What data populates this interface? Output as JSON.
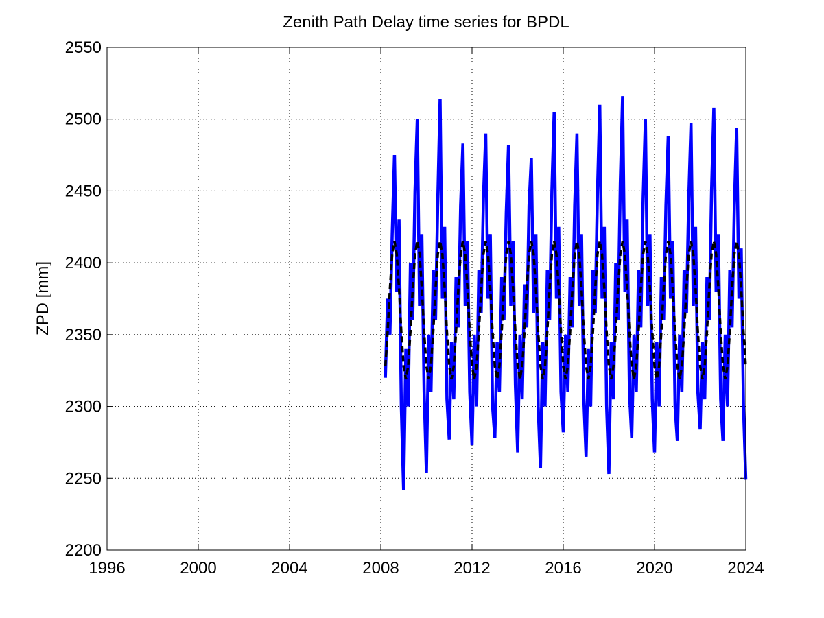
{
  "chart_data": {
    "type": "line",
    "title": "Zenith Path Delay time series for BPDL",
    "y_label": "ZPD [mm]",
    "xlim": [
      1996,
      2024
    ],
    "xticks": [
      1996,
      2000,
      2004,
      2008,
      2012,
      2016,
      2020,
      2024
    ],
    "ylim": [
      2200,
      2550
    ],
    "yticks": [
      2200,
      2250,
      2300,
      2350,
      2400,
      2450,
      2500,
      2550
    ],
    "grid": true,
    "x": [
      2008.2,
      2008.3,
      2008.4,
      2008.5,
      2008.6,
      2008.7,
      2008.8,
      2008.9,
      2009,
      2009.1,
      2009.2,
      2009.3,
      2009.4,
      2009.5,
      2009.6,
      2009.7,
      2009.8,
      2009.9,
      2010,
      2010.1,
      2010.2,
      2010.3,
      2010.4,
      2010.5,
      2010.6,
      2010.7,
      2010.8,
      2010.9,
      2011,
      2011.1,
      2011.2,
      2011.3,
      2011.4,
      2011.5,
      2011.6,
      2011.7,
      2011.8,
      2011.9,
      2012,
      2012.1,
      2012.2,
      2012.3,
      2012.4,
      2012.5,
      2012.6,
      2012.7,
      2012.8,
      2012.9,
      2013,
      2013.1,
      2013.2,
      2013.3,
      2013.4,
      2013.5,
      2013.6,
      2013.7,
      2013.8,
      2013.9,
      2014,
      2014.1,
      2014.2,
      2014.3,
      2014.4,
      2014.5,
      2014.6,
      2014.7,
      2014.8,
      2014.9,
      2015,
      2015.1,
      2015.2,
      2015.3,
      2015.4,
      2015.5,
      2015.6,
      2015.7,
      2015.8,
      2015.9,
      2016,
      2016.1,
      2016.2,
      2016.3,
      2016.4,
      2016.5,
      2016.6,
      2016.7,
      2016.8,
      2016.9,
      2017,
      2017.1,
      2017.2,
      2017.3,
      2017.4,
      2017.5,
      2017.6,
      2017.7,
      2017.8,
      2017.9,
      2018,
      2018.1,
      2018.2,
      2018.3,
      2018.4,
      2018.5,
      2018.6,
      2018.7,
      2018.8,
      2018.9,
      2019,
      2019.1,
      2019.2,
      2019.3,
      2019.4,
      2019.5,
      2019.6,
      2019.7,
      2019.8,
      2019.9,
      2020,
      2020.1,
      2020.2,
      2020.3,
      2020.4,
      2020.5,
      2020.6,
      2020.7,
      2020.8,
      2020.9,
      2021,
      2021.1,
      2021.2,
      2021.3,
      2021.4,
      2021.5,
      2021.6,
      2021.7,
      2021.8,
      2021.9,
      2022,
      2022.1,
      2022.2,
      2022.3,
      2022.4,
      2022.5,
      2022.6,
      2022.7,
      2022.8,
      2022.9,
      2023,
      2023.1,
      2023.2,
      2023.3,
      2023.4,
      2023.5,
      2023.6,
      2023.7,
      2023.8,
      2023.9,
      2024
    ],
    "series": [
      {
        "color": "#0000ff",
        "style": "solid",
        "values": [
          2320,
          2375,
          2350,
          2420,
          2475,
          2380,
          2430,
          2300,
          2242,
          2340,
          2300,
          2400,
          2360,
          2450,
          2500,
          2370,
          2420,
          2310,
          2254,
          2350,
          2310,
          2395,
          2360,
          2445,
          2514,
          2375,
          2425,
          2305,
          2277,
          2345,
          2305,
          2390,
          2355,
          2440,
          2483,
          2370,
          2415,
          2310,
          2273,
          2350,
          2300,
          2395,
          2365,
          2445,
          2490,
          2375,
          2420,
          2300,
          2278,
          2345,
          2310,
          2390,
          2360,
          2435,
          2482,
          2370,
          2415,
          2315,
          2268,
          2350,
          2305,
          2385,
          2355,
          2440,
          2473,
          2365,
          2420,
          2300,
          2257,
          2345,
          2300,
          2395,
          2360,
          2450,
          2505,
          2375,
          2425,
          2310,
          2282,
          2350,
          2310,
          2390,
          2355,
          2440,
          2490,
          2370,
          2420,
          2305,
          2265,
          2340,
          2300,
          2395,
          2365,
          2450,
          2510,
          2375,
          2425,
          2300,
          2253,
          2345,
          2305,
          2400,
          2360,
          2455,
          2516,
          2380,
          2430,
          2310,
          2278,
          2350,
          2310,
          2395,
          2355,
          2445,
          2500,
          2370,
          2420,
          2305,
          2268,
          2345,
          2300,
          2390,
          2360,
          2440,
          2488,
          2375,
          2415,
          2300,
          2276,
          2350,
          2310,
          2395,
          2365,
          2445,
          2497,
          2370,
          2425,
          2310,
          2284,
          2345,
          2305,
          2390,
          2360,
          2450,
          2508,
          2380,
          2420,
          2305,
          2276,
          2350,
          2300,
          2395,
          2355,
          2440,
          2494,
          2375,
          2410,
          2300,
          2249
        ]
      },
      {
        "color": "#000000",
        "style": "dashed",
        "values": [
          2328,
          2352,
          2382,
          2406,
          2415,
          2406,
          2382,
          2352,
          2328,
          2319,
          2328,
          2352,
          2382,
          2406,
          2415,
          2406,
          2382,
          2352,
          2328,
          2319,
          2328,
          2352,
          2382,
          2406,
          2415,
          2406,
          2382,
          2352,
          2328,
          2319,
          2328,
          2352,
          2382,
          2406,
          2415,
          2406,
          2382,
          2352,
          2328,
          2319,
          2328,
          2352,
          2382,
          2406,
          2415,
          2406,
          2382,
          2352,
          2328,
          2319,
          2328,
          2352,
          2382,
          2406,
          2415,
          2406,
          2382,
          2352,
          2328,
          2319,
          2328,
          2352,
          2382,
          2406,
          2415,
          2406,
          2382,
          2352,
          2328,
          2319,
          2328,
          2352,
          2382,
          2406,
          2415,
          2406,
          2382,
          2352,
          2328,
          2319,
          2328,
          2352,
          2382,
          2406,
          2415,
          2406,
          2382,
          2352,
          2328,
          2319,
          2328,
          2352,
          2382,
          2406,
          2415,
          2406,
          2382,
          2352,
          2328,
          2319,
          2328,
          2352,
          2382,
          2406,
          2415,
          2406,
          2382,
          2352,
          2328,
          2319,
          2328,
          2352,
          2382,
          2406,
          2415,
          2406,
          2382,
          2352,
          2328,
          2319,
          2328,
          2352,
          2382,
          2406,
          2415,
          2406,
          2382,
          2352,
          2328,
          2319,
          2328,
          2352,
          2382,
          2406,
          2415,
          2406,
          2382,
          2352,
          2328,
          2319,
          2328,
          2352,
          2382,
          2406,
          2415,
          2406,
          2382,
          2352,
          2328,
          2319,
          2328,
          2352,
          2382,
          2406,
          2415,
          2406,
          2382,
          2352,
          2328
        ]
      }
    ]
  }
}
